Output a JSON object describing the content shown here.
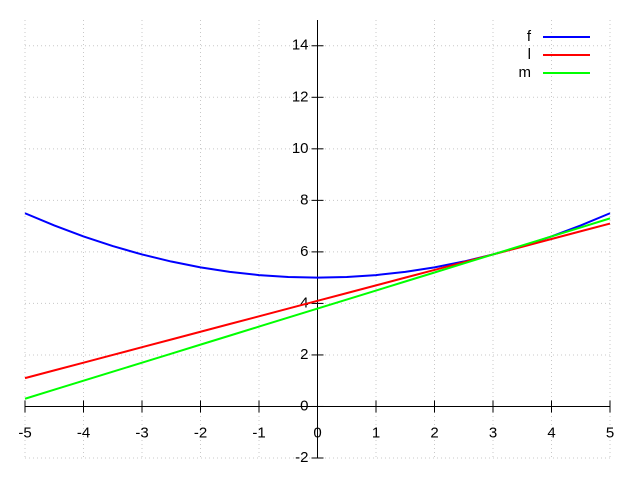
{
  "chart_data": {
    "type": "line",
    "x": [
      -5,
      -4.5,
      -4,
      -3.5,
      -3,
      -2.5,
      -2,
      -1.5,
      -1,
      -0.5,
      0,
      0.5,
      1,
      1.5,
      2,
      2.5,
      3,
      3.5,
      4,
      4.5,
      5
    ],
    "series": [
      {
        "name": "f",
        "color": "#0000ff",
        "values": [
          7.5,
          7.025,
          6.6,
          6.225,
          5.9,
          5.625,
          5.4,
          5.225,
          5.1,
          5.025,
          5,
          5.025,
          5.1,
          5.225,
          5.4,
          5.625,
          5.9,
          6.225,
          6.6,
          7.025,
          7.5
        ]
      },
      {
        "name": "l",
        "color": "#ff0000",
        "values": [
          1.1,
          1.4,
          1.7,
          2.0,
          2.3,
          2.6,
          2.9,
          3.2,
          3.5,
          3.8,
          4.1,
          4.4,
          4.7,
          5.0,
          5.3,
          5.6,
          5.9,
          6.2,
          6.5,
          6.8,
          7.1
        ]
      },
      {
        "name": "m",
        "color": "#00ff00",
        "values": [
          0.3,
          0.65,
          1.0,
          1.35,
          1.7,
          2.05,
          2.4,
          2.75,
          3.1,
          3.45,
          3.8,
          4.15,
          4.5,
          4.85,
          5.2,
          5.55,
          5.9,
          6.25,
          6.6,
          6.95,
          7.3
        ]
      }
    ],
    "xlim": [
      -5,
      5
    ],
    "ylim": [
      -2,
      15
    ],
    "xticks": [
      -5,
      -4,
      -3,
      -2,
      -1,
      0,
      1,
      2,
      3,
      4,
      5
    ],
    "yticks": [
      -2,
      0,
      2,
      4,
      6,
      8,
      10,
      12,
      14
    ],
    "grid": true,
    "legend": "top-right"
  }
}
